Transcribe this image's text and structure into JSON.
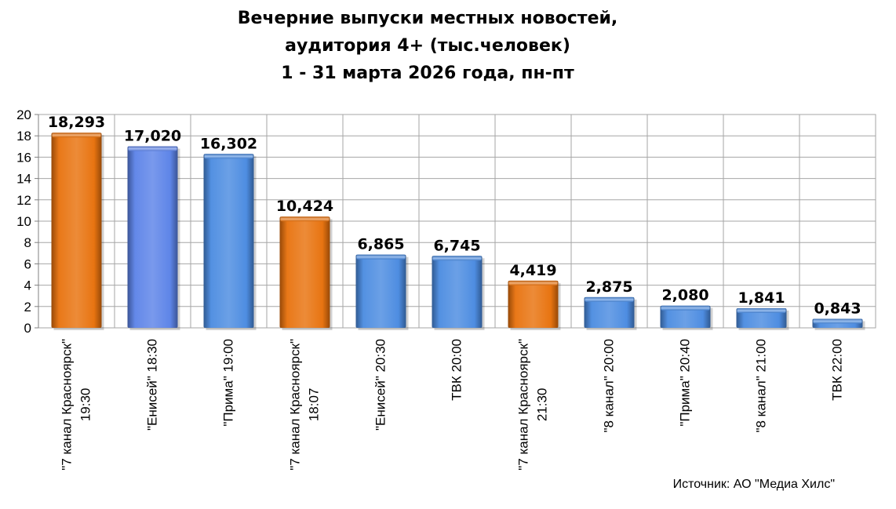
{
  "title_lines": [
    "Вечерние выпуски местных новостей,",
    "аудитория 4+ (тыс.человек)",
    "1 - 31 марта 2026 года, пн-пт"
  ],
  "source": "Источник: АО \"Медиа Хилс\"",
  "colors": {
    "orange": "#E8710C",
    "blue": "#4A8BE0",
    "blue_alt": "#5B82E8",
    "grid": "#A6A6A6",
    "axis": "#808080"
  },
  "chart_data": {
    "type": "bar",
    "title": "Вечерние выпуски местных новостей, аудитория 4+ (тыс.человек) 1 - 31 марта 2026 года, пн-пт",
    "categories": [
      [
        "\"7 канал Красноярск\"",
        "19:30"
      ],
      [
        "\"Енисей\" 18:30"
      ],
      [
        "\"Прима\" 19:00"
      ],
      [
        "\"7 канал Красноярск\"",
        "18:07"
      ],
      [
        "\"Енисей\" 20:30"
      ],
      [
        "ТВК 20:00"
      ],
      [
        "\"7 канал Красноярск\"",
        "21:30"
      ],
      [
        "\"8 канал\" 20:00"
      ],
      [
        "\"Прима\" 20:40"
      ],
      [
        "\"8 канал\" 21:00"
      ],
      [
        "ТВК 22:00"
      ]
    ],
    "values": [
      18.293,
      17.02,
      16.302,
      10.424,
      6.865,
      6.745,
      4.419,
      2.875,
      2.08,
      1.841,
      0.843
    ],
    "data_labels": [
      "18,293",
      "17,020",
      "16,302",
      "10,424",
      "6,865",
      "6,745",
      "4,419",
      "2,875",
      "2,080",
      "1,841",
      "0,843"
    ],
    "bar_colors": [
      "orange",
      "blue_alt",
      "blue",
      "orange",
      "blue",
      "blue",
      "orange",
      "blue",
      "blue",
      "blue",
      "blue"
    ],
    "y_ticks": [
      "0",
      "2",
      "4",
      "6",
      "8",
      "10",
      "12",
      "14",
      "16",
      "18",
      "20"
    ],
    "ylim": [
      0,
      20
    ],
    "grid": true,
    "xlabel": "",
    "ylabel": ""
  }
}
